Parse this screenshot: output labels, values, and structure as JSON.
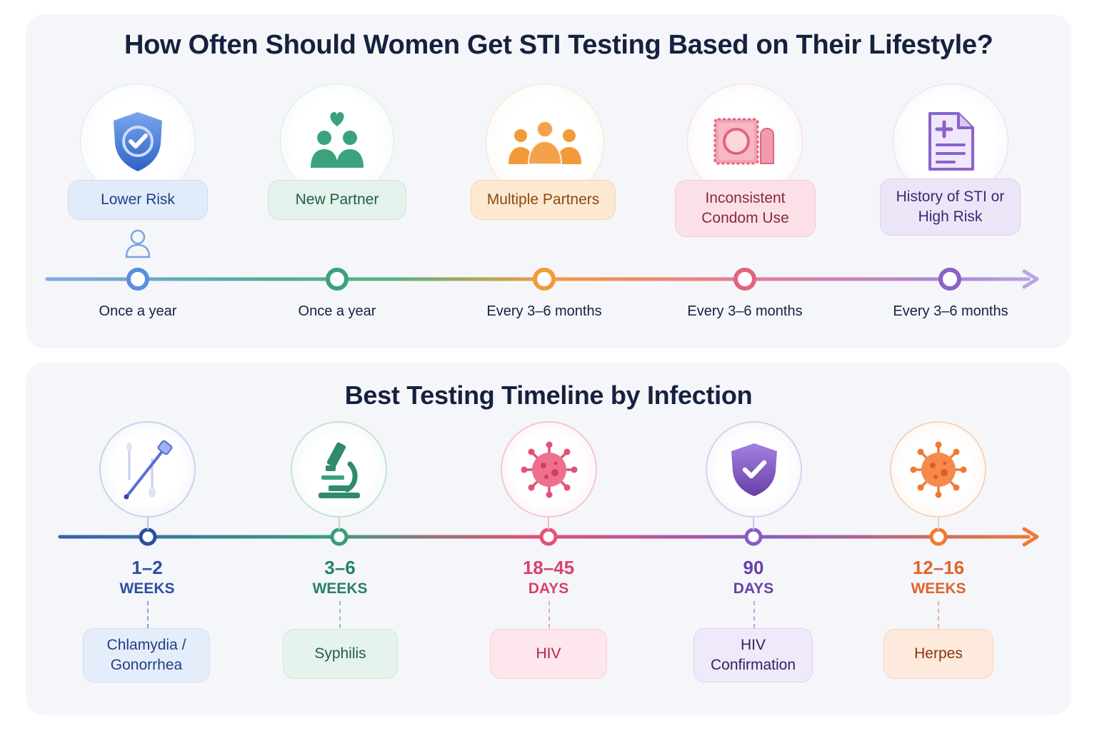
{
  "top": {
    "title": "How Often Should Women Get STI Testing Based on Their Lifestyle?",
    "items": [
      {
        "label": "Lower Risk",
        "frequency": "Once a year",
        "icon": "shield-check-icon",
        "color": "#4a7fd6"
      },
      {
        "label": "New Partner",
        "frequency": "Once a year",
        "icon": "couple-heart-icon",
        "color": "#3aa37c"
      },
      {
        "label": "Multiple Partners",
        "frequency": "Every 3–6 months",
        "icon": "group-people-icon",
        "color": "#f29a3a"
      },
      {
        "label": "Inconsistent Condom Use",
        "frequency": "Every 3–6 months",
        "icon": "condom-wrapper-icon",
        "color": "#e2647f"
      },
      {
        "label": "History of STI or High Risk",
        "frequency": "Every 3–6 months",
        "icon": "medical-document-icon",
        "color": "#8a63c8"
      }
    ]
  },
  "bottom": {
    "title": "Best Testing Timeline by Infection",
    "items": [
      {
        "number": "1–2",
        "unit": "WEEKS",
        "infection": "Chlamydia / Gonorrhea",
        "icon": "swab-test-icon",
        "color": "#2b4f9e"
      },
      {
        "number": "3–6",
        "unit": "WEEKS",
        "infection": "Syphilis",
        "icon": "microscope-icon",
        "color": "#27806a"
      },
      {
        "number": "18–45",
        "unit": "DAYS",
        "infection": "HIV",
        "icon": "virus-pink-icon",
        "color": "#d8416b"
      },
      {
        "number": "90",
        "unit": "DAYS",
        "infection": "HIV Confirmation",
        "icon": "shield-check-purple-icon",
        "color": "#6a3fa8"
      },
      {
        "number": "12–16",
        "unit": "WEEKS",
        "infection": "Herpes",
        "icon": "virus-orange-icon",
        "color": "#e0642a"
      }
    ]
  }
}
